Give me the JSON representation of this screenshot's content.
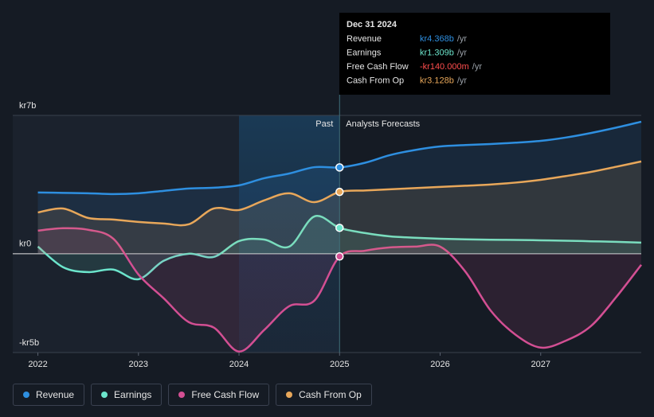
{
  "chart_data": {
    "type": "line",
    "x": [
      2022,
      2022.25,
      2022.5,
      2022.75,
      2023,
      2023.25,
      2023.5,
      2023.75,
      2024,
      2024.25,
      2024.5,
      2024.75,
      2025,
      2025.25,
      2025.5,
      2025.75,
      2026,
      2026.25,
      2026.5,
      2026.75,
      2027,
      2027.25,
      2027.5,
      2027.75,
      2028
    ],
    "xlim": [
      2021.75,
      2028
    ],
    "xticks": [
      2022,
      2023,
      2024,
      2025,
      2026,
      2027
    ],
    "ylim": [
      -5,
      7
    ],
    "yticks": [
      {
        "value": -5,
        "label": "-kr5b"
      },
      {
        "value": 0,
        "label": "kr0"
      },
      {
        "value": 7,
        "label": "kr7b"
      }
    ],
    "forecast_start": 2025,
    "annotations": {
      "past": "Past",
      "forecast": "Analysts Forecasts"
    },
    "series": [
      {
        "name": "Revenue",
        "color": "#2e8fe0",
        "values": [
          3.1,
          3.08,
          3.06,
          3.02,
          3.06,
          3.18,
          3.3,
          3.34,
          3.46,
          3.82,
          4.06,
          4.38,
          4.368,
          4.6,
          4.99,
          5.25,
          5.43,
          5.5,
          5.55,
          5.62,
          5.71,
          5.88,
          6.11,
          6.38,
          6.68
        ]
      },
      {
        "name": "Earnings",
        "color": "#6ce5cc",
        "values": [
          0.36,
          -0.68,
          -0.93,
          -0.8,
          -1.29,
          -0.36,
          0,
          -0.16,
          0.64,
          0.72,
          0.36,
          1.89,
          1.309,
          1.05,
          0.88,
          0.81,
          0.76,
          0.73,
          0.71,
          0.7,
          0.68,
          0.66,
          0.63,
          0.6,
          0.56
        ]
      },
      {
        "name": "Free Cash Flow",
        "color": "#d34f93",
        "values": [
          1.17,
          1.29,
          1.21,
          0.76,
          -1.05,
          -2.25,
          -3.46,
          -3.74,
          -4.95,
          -3.86,
          -2.65,
          -2.37,
          -0.14,
          0.15,
          0.32,
          0.36,
          0.36,
          -0.9,
          -2.86,
          -4.1,
          -4.75,
          -4.4,
          -3.66,
          -2.2,
          -0.56
        ]
      },
      {
        "name": "Cash From Op",
        "color": "#e8a75a",
        "values": [
          2.09,
          2.29,
          1.81,
          1.73,
          1.61,
          1.53,
          1.49,
          2.29,
          2.21,
          2.7,
          3.06,
          2.61,
          3.128,
          3.2,
          3.26,
          3.32,
          3.38,
          3.44,
          3.5,
          3.6,
          3.74,
          3.93,
          4.14,
          4.4,
          4.67
        ]
      }
    ],
    "tooltip": {
      "title": "Dec 31 2024",
      "unit": "/yr",
      "value_labels": [
        "kr4.368b",
        "kr1.309b",
        "-kr140.000m",
        "kr3.128b"
      ]
    }
  }
}
